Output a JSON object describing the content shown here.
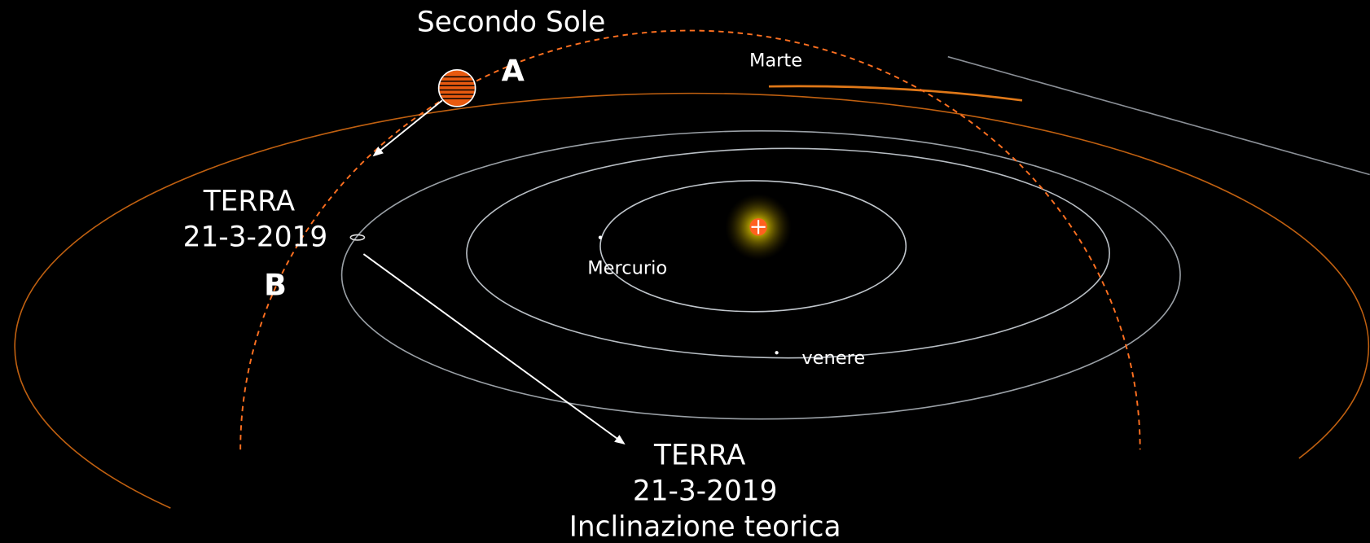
{
  "labels": {
    "second_sun": "Secondo Sole",
    "point_a": "A",
    "mars": "Marte",
    "earth_title": "TERRA",
    "earth_date": "21-3-2019",
    "point_b": "B",
    "mercury": "Mercurio",
    "venus": "venere",
    "earth2_title": "TERRA",
    "earth2_date": "21-3-2019",
    "earth2_note": "Inclinazione teorica"
  }
}
